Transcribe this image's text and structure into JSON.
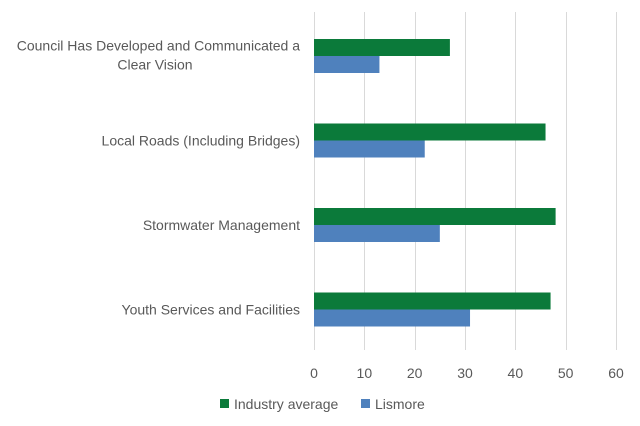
{
  "chart_data": {
    "type": "bar",
    "orientation": "horizontal",
    "categories": [
      [
        "Council Has Developed and Communicated a",
        "Clear Vision"
      ],
      [
        "Local Roads (Including Bridges)"
      ],
      [
        "Stormwater Management"
      ],
      [
        "Youth Services and Facilities"
      ]
    ],
    "series": [
      {
        "name": "Industry average",
        "color": "#0b7a3a",
        "values": [
          27,
          46,
          48,
          47
        ]
      },
      {
        "name": "Lismore",
        "color": "#4f81bd",
        "values": [
          13,
          22,
          25,
          31
        ]
      }
    ],
    "x_ticks": [
      "0",
      "10",
      "20",
      "30",
      "40",
      "50",
      "60"
    ],
    "xlim": [
      0,
      60
    ],
    "grid": "vertical",
    "legend_position": "bottom"
  }
}
